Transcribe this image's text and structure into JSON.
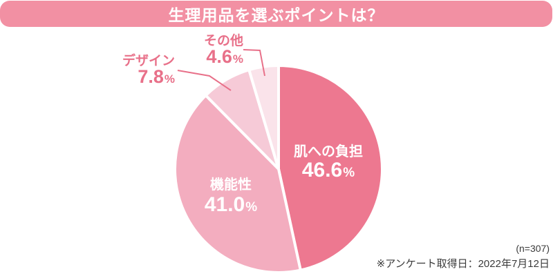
{
  "title": "生理用品を選ぶポイントは？",
  "footnote": {
    "n": "(n=307)",
    "date": "※アンケート取得日：2022年7月12日"
  },
  "colors": {
    "background": "#FFFFFF",
    "title_bar_bg": "#F290A3",
    "title_text": "#FFFFFF",
    "inside_label_text": "#FFFFFF",
    "outside_label_text": "#E87089",
    "leader_line": "#E87089",
    "slice_divider": "#FFFFFF",
    "note_text": "#3A3A3A"
  },
  "chart_data": {
    "type": "pie",
    "title": "生理用品を選ぶポイントは？",
    "start_angle_deg": 0,
    "direction": "clockwise",
    "slices": [
      {
        "label": "肌への負担",
        "value": 46.6,
        "value_display": "46.6",
        "unit": "%",
        "color": "#ED7890",
        "label_placement": "inside"
      },
      {
        "label": "機能性",
        "value": 41.0,
        "value_display": "41.0",
        "unit": "%",
        "color": "#F3ADBF",
        "label_placement": "inside"
      },
      {
        "label": "デザイン",
        "value": 7.8,
        "value_display": "7.8",
        "unit": "%",
        "color": "#F6CAD7",
        "label_placement": "outside"
      },
      {
        "label": "その他",
        "value": 4.6,
        "value_display": "4.6",
        "unit": "%",
        "color": "#FAE3EA",
        "label_placement": "outside"
      }
    ],
    "sample_size_note": "(n=307)",
    "date_note": "※アンケート取得日：2022年7月12日"
  }
}
